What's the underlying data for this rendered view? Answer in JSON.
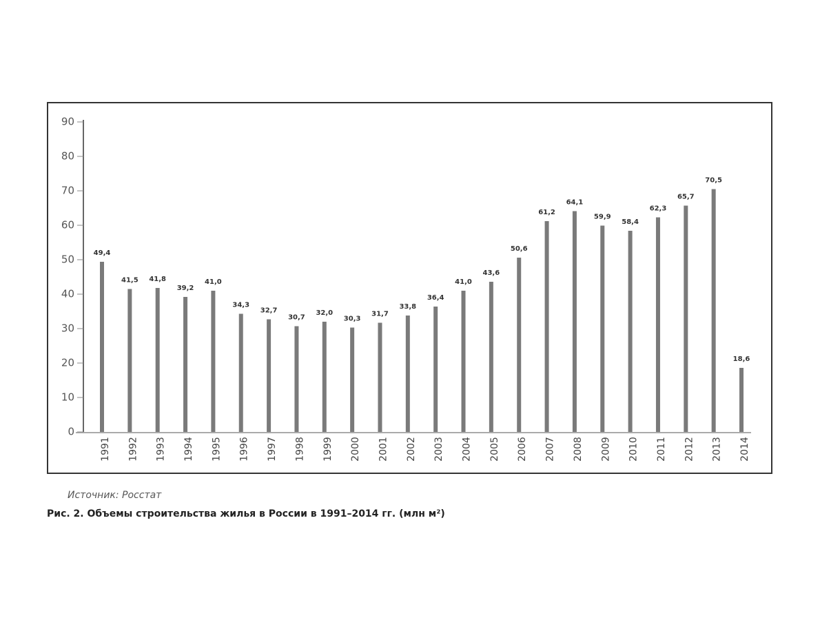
{
  "chart_data": {
    "type": "bar",
    "categories": [
      "1991",
      "1992",
      "1993",
      "1994",
      "1995",
      "1996",
      "1997",
      "1998",
      "1999",
      "2000",
      "2001",
      "2002",
      "2003",
      "2004",
      "2005",
      "2006",
      "2007",
      "2008",
      "2009",
      "2010",
      "2011",
      "2012",
      "2013",
      "2014"
    ],
    "values": [
      49.4,
      41.5,
      41.8,
      39.2,
      41.0,
      34.3,
      32.7,
      30.7,
      32.0,
      30.3,
      31.7,
      33.8,
      36.4,
      41.0,
      43.6,
      50.6,
      61.2,
      64.1,
      59.9,
      58.4,
      62.3,
      65.7,
      70.5,
      18.6
    ],
    "value_labels": [
      "49,4",
      "41,5",
      "41,8",
      "39,2",
      "41,0",
      "34,3",
      "32,7",
      "30,7",
      "32,0",
      "30,3",
      "31,7",
      "33,8",
      "36,4",
      "41,0",
      "43,6",
      "50,6",
      "61,2",
      "64,1",
      "59,9",
      "58,4",
      "62,3",
      "65,7",
      "70,5",
      "18,6"
    ],
    "color": "#7a7a7a",
    "ylim": [
      0,
      90
    ],
    "yticks": [
      0,
      10,
      20,
      30,
      40,
      50,
      60,
      70,
      80,
      90
    ],
    "source": "Источник: Росстат",
    "caption": "Рис. 2. Объемы строительства жилья в России в 1991–2014 гг. (млн м²)"
  }
}
